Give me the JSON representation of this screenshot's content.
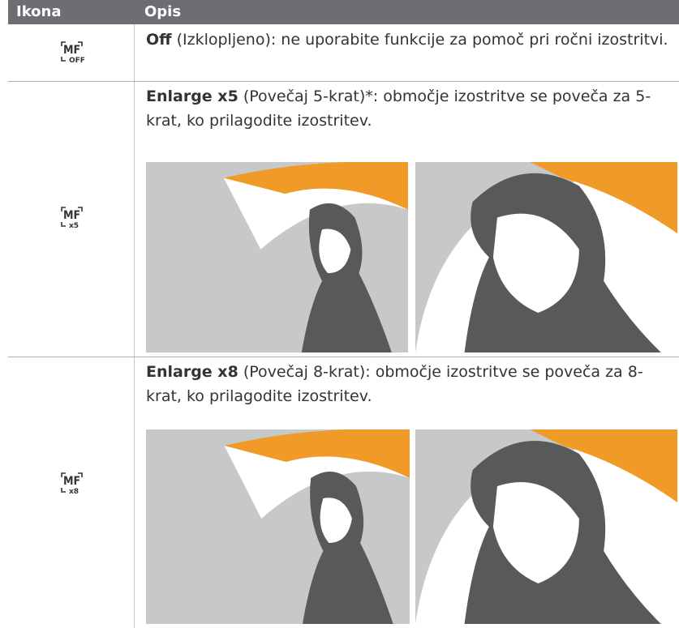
{
  "table": {
    "header": [
      "Ikona",
      "Opis"
    ],
    "rows": [
      {
        "icon": {
          "main": "MF",
          "sub": "OFF"
        },
        "bold": "Off",
        "text": " (Izklopljeno): ne uporabite funkcije za pomoč pri ročni izostritvi."
      },
      {
        "icon": {
          "main": "MF",
          "sub": "x5"
        },
        "bold": "Enlarge x5",
        "text": " (Povečaj 5-krat)*: območje izostritve se poveča za 5-krat, ko prilagodite izostritev."
      },
      {
        "icon": {
          "main": "MF",
          "sub": "x8"
        },
        "bold": "Enlarge x8",
        "text": " (Povečaj 8-krat): območje izostritve se poveča za 8-krat, ko prilagodite izostritev."
      }
    ]
  }
}
